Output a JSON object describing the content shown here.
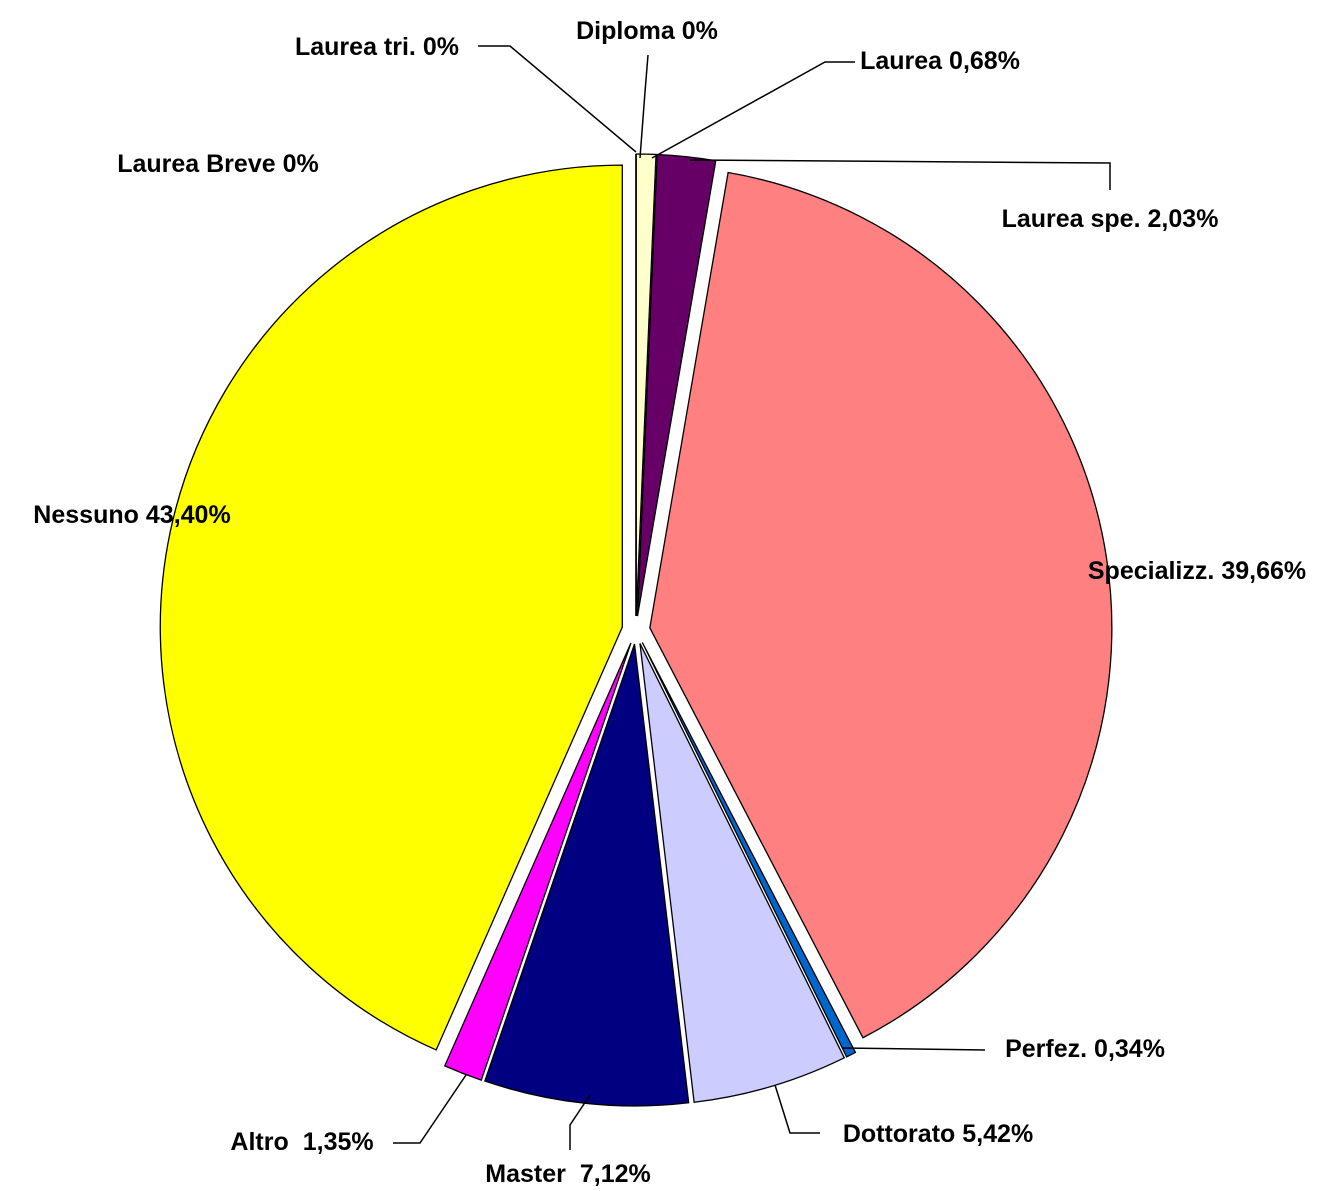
{
  "chart_data": {
    "type": "pie",
    "categories": [
      "Laurea Breve",
      "Laurea tri.",
      "Diploma",
      "Laurea",
      "Laurea spe.",
      "Specializz.",
      "Perfez.",
      "Dottorato",
      "Master",
      "Altro",
      "Nessuno"
    ],
    "values": [
      0,
      0,
      0,
      0.68,
      2.03,
      39.66,
      0.34,
      5.42,
      7.12,
      1.35,
      43.4
    ],
    "value_labels": [
      "0%",
      "0%",
      "0%",
      "0,68%",
      "2,03%",
      "39,66%",
      "0,34%",
      "5,42%",
      "7,12%",
      "1,35%",
      "43,40%"
    ],
    "colors": [
      "#9999ff",
      "#993366",
      "#ffffcc",
      "#ffffcc",
      "#660066",
      "#ff8080",
      "#0066cc",
      "#ccccff",
      "#000080",
      "#ff00ff",
      "#ffff00"
    ]
  }
}
